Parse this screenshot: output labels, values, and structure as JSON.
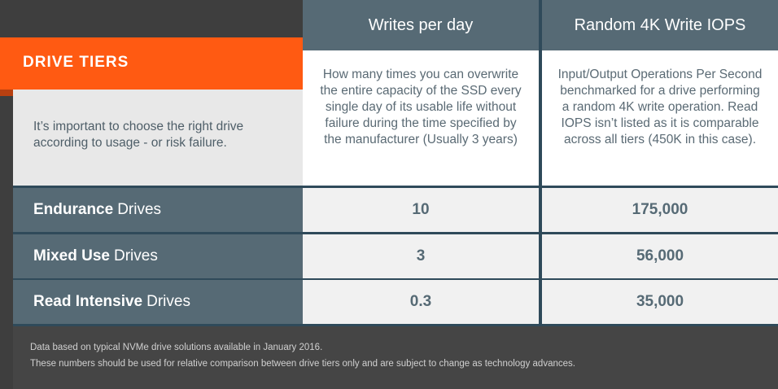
{
  "banner": {
    "title": "DRIVE TIERS"
  },
  "intro": "It’s important to choose the right drive according to usage - or risk failure.",
  "columns": [
    {
      "header": "Writes per day",
      "description": "How many times you can overwrite the entire capacity of the SSD every single day of its usable life without failure during the time specified by the manufacturer (Usually 3 years)"
    },
    {
      "header": "Random 4K Write IOPS",
      "description": "Input/Output Operations Per Second benchmarked for a drive performing a random 4K write operation. Read IOPS isn’t listed as it is comparable across all tiers (450K in this case)."
    }
  ],
  "rows": [
    {
      "name_bold": "Endurance",
      "name_suffix": "Drives",
      "writes_per_day": "10",
      "iops": "175,000"
    },
    {
      "name_bold": "Mixed Use",
      "name_suffix": "Drives",
      "writes_per_day": "3",
      "iops": "56,000"
    },
    {
      "name_bold": "Read Intensive",
      "name_suffix": "Drives",
      "writes_per_day": "0.3",
      "iops": "35,000"
    }
  ],
  "footer": {
    "line1": "Data based on typical NVMe drive solutions available in January 2016.",
    "line2": "These numbers should be used for relative comparison between drive tiers only and are subject to change as technology advances."
  },
  "colors": {
    "accent": "#ff5a12",
    "header_bg": "#566a75",
    "separator": "#2f4a5a",
    "background": "#3e3e3e"
  }
}
